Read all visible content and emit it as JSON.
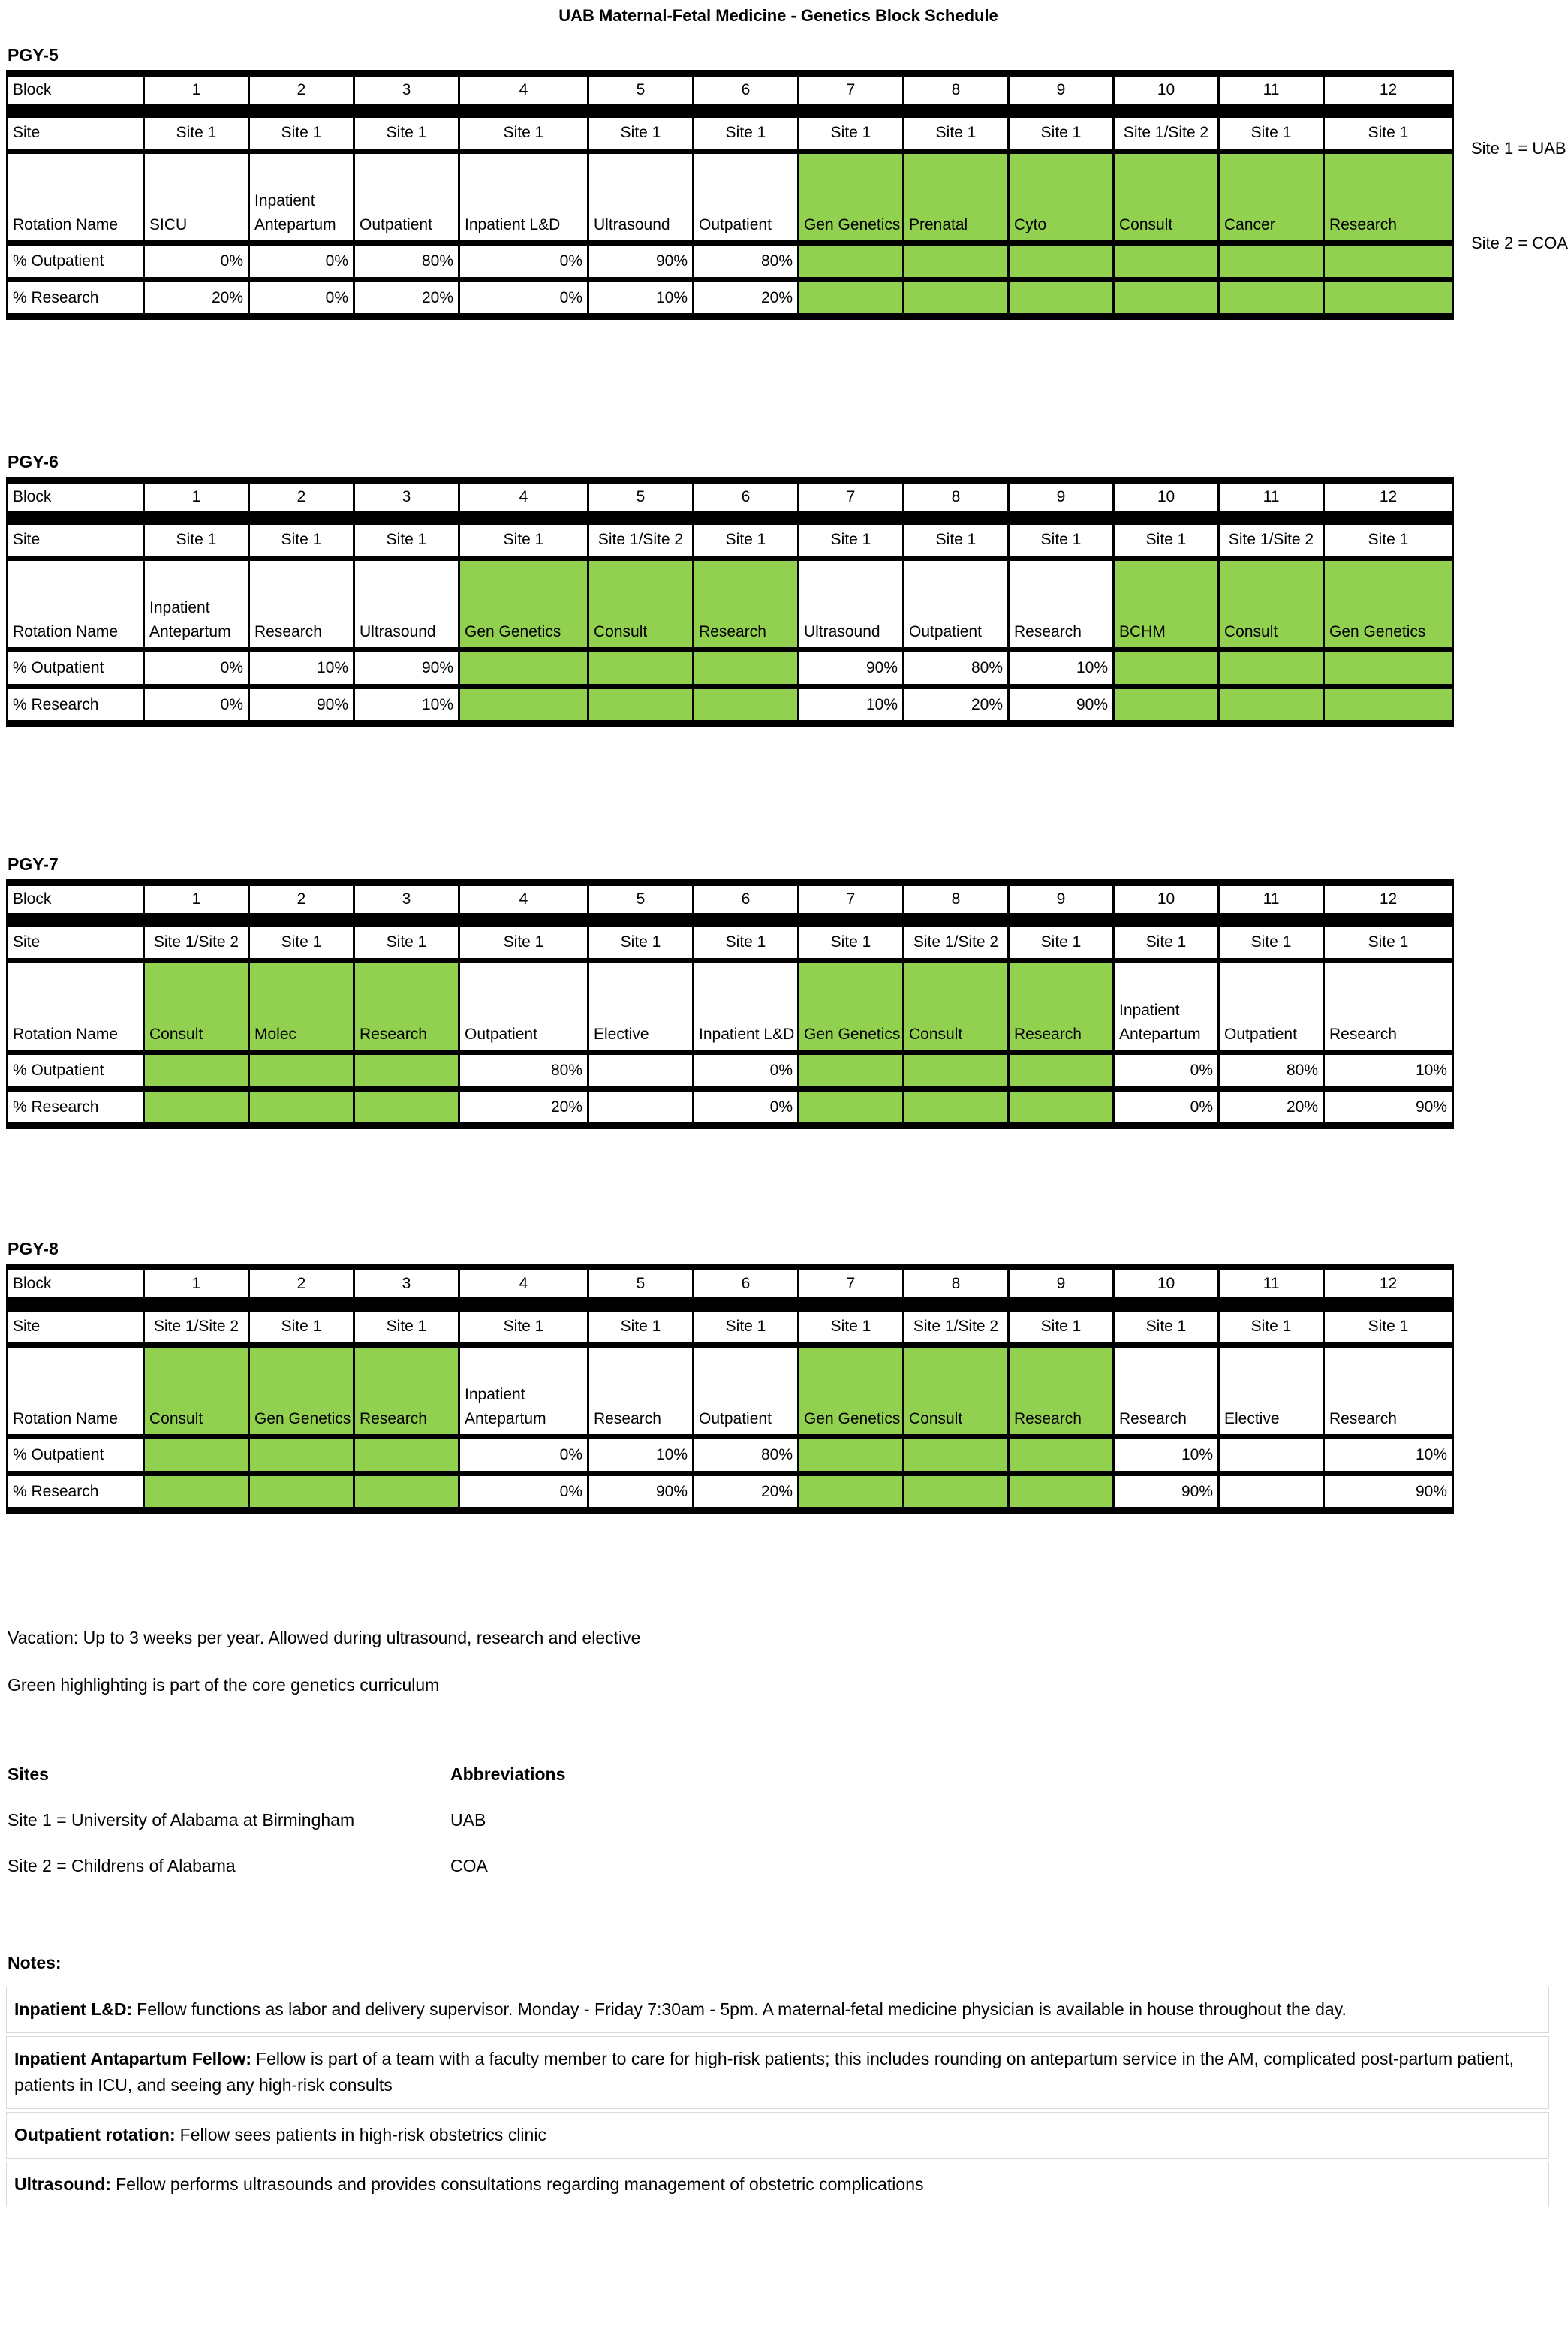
{
  "title": "UAB Maternal-Fetal Medicine - Genetics Block Schedule",
  "legend": {
    "site1": "Site 1 = UAB",
    "site2": "Site 2 = COA"
  },
  "row_labels": {
    "block": "Block",
    "site": "Site",
    "rotation": "Rotation Name",
    "pct_outpatient": "% Outpatient",
    "pct_research": "% Research"
  },
  "colors": {
    "core_genetics_green": "#92d050"
  },
  "tables": [
    {
      "label": "PGY-5",
      "blocks": [
        "1",
        "2",
        "3",
        "4",
        "5",
        "6",
        "7",
        "8",
        "9",
        "10",
        "11",
        "12"
      ],
      "sites": [
        "Site 1",
        "Site 1",
        "Site 1",
        "Site 1",
        "Site 1",
        "Site 1",
        "Site 1",
        "Site 1",
        "Site 1",
        "Site 1/Site 2",
        "Site 1",
        "Site 1"
      ],
      "rotations": [
        {
          "t": "SICU",
          "g": false
        },
        {
          "t": "Inpatient Antepartum",
          "g": false
        },
        {
          "t": "Outpatient",
          "g": false
        },
        {
          "t": "Inpatient L&D",
          "g": false
        },
        {
          "t": "Ultrasound",
          "g": false
        },
        {
          "t": "Outpatient",
          "g": false
        },
        {
          "t": "Gen Genetics",
          "g": true
        },
        {
          "t": "Prenatal",
          "g": true
        },
        {
          "t": "Cyto",
          "g": true
        },
        {
          "t": "Consult",
          "g": true
        },
        {
          "t": "Cancer",
          "g": true
        },
        {
          "t": "Research",
          "g": true
        }
      ],
      "pct_outpatient": [
        {
          "t": "0%",
          "g": false
        },
        {
          "t": "0%",
          "g": false
        },
        {
          "t": "80%",
          "g": false
        },
        {
          "t": "0%",
          "g": false
        },
        {
          "t": "90%",
          "g": false
        },
        {
          "t": "80%",
          "g": false
        },
        {
          "t": "",
          "g": true
        },
        {
          "t": "",
          "g": true
        },
        {
          "t": "",
          "g": true
        },
        {
          "t": "",
          "g": true
        },
        {
          "t": "",
          "g": true
        },
        {
          "t": "",
          "g": true
        }
      ],
      "pct_research": [
        {
          "t": "20%",
          "g": false
        },
        {
          "t": "0%",
          "g": false
        },
        {
          "t": "20%",
          "g": false
        },
        {
          "t": "0%",
          "g": false
        },
        {
          "t": "10%",
          "g": false
        },
        {
          "t": "20%",
          "g": false
        },
        {
          "t": "",
          "g": true
        },
        {
          "t": "",
          "g": true
        },
        {
          "t": "",
          "g": true
        },
        {
          "t": "",
          "g": true
        },
        {
          "t": "",
          "g": true
        },
        {
          "t": "",
          "g": true
        }
      ]
    },
    {
      "label": "PGY-6",
      "blocks": [
        "1",
        "2",
        "3",
        "4",
        "5",
        "6",
        "7",
        "8",
        "9",
        "10",
        "11",
        "12"
      ],
      "sites": [
        "Site 1",
        "Site 1",
        "Site 1",
        "Site 1",
        "Site 1/Site 2",
        "Site 1",
        "Site 1",
        "Site 1",
        "Site 1",
        "Site 1",
        "Site 1/Site 2",
        "Site 1"
      ],
      "rotations": [
        {
          "t": "Inpatient Antepartum",
          "g": false
        },
        {
          "t": "Research",
          "g": false
        },
        {
          "t": "Ultrasound",
          "g": false
        },
        {
          "t": "Gen Genetics",
          "g": true
        },
        {
          "t": "Consult",
          "g": true
        },
        {
          "t": "Research",
          "g": true
        },
        {
          "t": "Ultrasound",
          "g": false
        },
        {
          "t": "Outpatient",
          "g": false
        },
        {
          "t": "Research",
          "g": false
        },
        {
          "t": "BCHM",
          "g": true
        },
        {
          "t": "Consult",
          "g": true
        },
        {
          "t": "Gen Genetics",
          "g": true
        }
      ],
      "pct_outpatient": [
        {
          "t": "0%",
          "g": false
        },
        {
          "t": "10%",
          "g": false
        },
        {
          "t": "90%",
          "g": false
        },
        {
          "t": "",
          "g": true
        },
        {
          "t": "",
          "g": true
        },
        {
          "t": "",
          "g": true
        },
        {
          "t": "90%",
          "g": false
        },
        {
          "t": "80%",
          "g": false
        },
        {
          "t": "10%",
          "g": false
        },
        {
          "t": "",
          "g": true
        },
        {
          "t": "",
          "g": true
        },
        {
          "t": "",
          "g": true
        }
      ],
      "pct_research": [
        {
          "t": "0%",
          "g": false
        },
        {
          "t": "90%",
          "g": false
        },
        {
          "t": "10%",
          "g": false
        },
        {
          "t": "",
          "g": true
        },
        {
          "t": "",
          "g": true
        },
        {
          "t": "",
          "g": true
        },
        {
          "t": "10%",
          "g": false
        },
        {
          "t": "20%",
          "g": false
        },
        {
          "t": "90%",
          "g": false
        },
        {
          "t": "",
          "g": true
        },
        {
          "t": "",
          "g": true
        },
        {
          "t": "",
          "g": true
        }
      ]
    },
    {
      "label": "PGY-7",
      "blocks": [
        "1",
        "2",
        "3",
        "4",
        "5",
        "6",
        "7",
        "8",
        "9",
        "10",
        "11",
        "12"
      ],
      "sites": [
        "Site 1/Site 2",
        "Site 1",
        "Site 1",
        "Site 1",
        "Site 1",
        "Site 1",
        "Site 1",
        "Site 1/Site 2",
        "Site 1",
        "Site 1",
        "Site 1",
        "Site 1"
      ],
      "rotations": [
        {
          "t": "Consult",
          "g": true
        },
        {
          "t": "Molec",
          "g": true
        },
        {
          "t": "Research",
          "g": true
        },
        {
          "t": "Outpatient",
          "g": false
        },
        {
          "t": "Elective",
          "g": false
        },
        {
          "t": "Inpatient L&D",
          "g": false
        },
        {
          "t": "Gen Genetics",
          "g": true
        },
        {
          "t": "Consult",
          "g": true
        },
        {
          "t": "Research",
          "g": true
        },
        {
          "t": "Inpatient Antepartum",
          "g": false
        },
        {
          "t": "Outpatient",
          "g": false
        },
        {
          "t": "Research",
          "g": false
        }
      ],
      "pct_outpatient": [
        {
          "t": "",
          "g": true
        },
        {
          "t": "",
          "g": true
        },
        {
          "t": "",
          "g": true
        },
        {
          "t": "80%",
          "g": false
        },
        {
          "t": "",
          "g": false
        },
        {
          "t": "0%",
          "g": false
        },
        {
          "t": "",
          "g": true
        },
        {
          "t": "",
          "g": true
        },
        {
          "t": "",
          "g": true
        },
        {
          "t": "0%",
          "g": false
        },
        {
          "t": "80%",
          "g": false
        },
        {
          "t": "10%",
          "g": false
        }
      ],
      "pct_research": [
        {
          "t": "",
          "g": true
        },
        {
          "t": "",
          "g": true
        },
        {
          "t": "",
          "g": true
        },
        {
          "t": "20%",
          "g": false
        },
        {
          "t": "",
          "g": false
        },
        {
          "t": "0%",
          "g": false
        },
        {
          "t": "",
          "g": true
        },
        {
          "t": "",
          "g": true
        },
        {
          "t": "",
          "g": true
        },
        {
          "t": "0%",
          "g": false
        },
        {
          "t": "20%",
          "g": false
        },
        {
          "t": "90%",
          "g": false
        }
      ]
    },
    {
      "label": "PGY-8",
      "blocks": [
        "1",
        "2",
        "3",
        "4",
        "5",
        "6",
        "7",
        "8",
        "9",
        "10",
        "11",
        "12"
      ],
      "sites": [
        "Site 1/Site 2",
        "Site 1",
        "Site 1",
        "Site 1",
        "Site 1",
        "Site 1",
        "Site 1",
        "Site 1/Site 2",
        "Site 1",
        "Site 1",
        "Site 1",
        "Site 1"
      ],
      "rotations": [
        {
          "t": "Consult",
          "g": true
        },
        {
          "t": "Gen Genetics",
          "g": true
        },
        {
          "t": "Research",
          "g": true
        },
        {
          "t": "Inpatient Antepartum",
          "g": false
        },
        {
          "t": "Research",
          "g": false
        },
        {
          "t": "Outpatient",
          "g": false
        },
        {
          "t": "Gen Genetics",
          "g": true
        },
        {
          "t": "Consult",
          "g": true
        },
        {
          "t": "Research",
          "g": true
        },
        {
          "t": "Research",
          "g": false
        },
        {
          "t": "Elective",
          "g": false
        },
        {
          "t": "Research",
          "g": false
        }
      ],
      "pct_outpatient": [
        {
          "t": "",
          "g": true
        },
        {
          "t": "",
          "g": true
        },
        {
          "t": "",
          "g": true
        },
        {
          "t": "0%",
          "g": false
        },
        {
          "t": "10%",
          "g": false
        },
        {
          "t": "80%",
          "g": false
        },
        {
          "t": "",
          "g": true
        },
        {
          "t": "",
          "g": true
        },
        {
          "t": "",
          "g": true
        },
        {
          "t": "10%",
          "g": false
        },
        {
          "t": "",
          "g": false
        },
        {
          "t": "10%",
          "g": false
        }
      ],
      "pct_research": [
        {
          "t": "",
          "g": true
        },
        {
          "t": "",
          "g": true
        },
        {
          "t": "",
          "g": true
        },
        {
          "t": "0%",
          "g": false
        },
        {
          "t": "90%",
          "g": false
        },
        {
          "t": "20%",
          "g": false
        },
        {
          "t": "",
          "g": true
        },
        {
          "t": "",
          "g": true
        },
        {
          "t": "",
          "g": true
        },
        {
          "t": "90%",
          "g": false
        },
        {
          "t": "",
          "g": false
        },
        {
          "t": "90%",
          "g": false
        }
      ]
    }
  ],
  "footer": {
    "vacation": "Vacation: Up to 3 weeks per year. Allowed during ultrasound, research and elective",
    "green_note": "Green highlighting is part of the core genetics curriculum",
    "sites_header": "Sites",
    "abbrev_header": "Abbreviations",
    "site_rows": [
      {
        "site": "Site 1 = University of Alabama at Birmingham",
        "abbrev": "UAB"
      },
      {
        "site": "Site 2 = Childrens of Alabama",
        "abbrev": "COA"
      }
    ],
    "notes_header": "Notes:",
    "notes": [
      {
        "label": "Inpatient L&D:",
        "text": "Fellow functions as labor and delivery supervisor. Monday - Friday 7:30am - 5pm. A maternal-fetal medicine physician is available in house throughout the day."
      },
      {
        "label": "Inpatient Antapartum Fellow:",
        "text": "Fellow is part of a team with a faculty member to care for high-risk patients; this includes rounding on antepartum service in the AM, complicated post-partum patient, patients in ICU, and seeing any high-risk consults"
      },
      {
        "label": "Outpatient rotation:",
        "text": "Fellow sees patients in high-risk obstetrics clinic"
      },
      {
        "label": "Ultrasound:",
        "text": "Fellow performs ultrasounds and provides consultations regarding management of obstetric complications"
      }
    ]
  }
}
